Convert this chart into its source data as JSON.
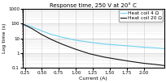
{
  "title": "Response time, 250 V at 20° C",
  "xlabel": "Current (A)",
  "ylabel": "Log time (s)",
  "xlim": [
    0.22,
    2.3
  ],
  "ylim_log": [
    0.1,
    1000
  ],
  "xticks": [
    0.25,
    0.5,
    0.75,
    1.0,
    1.25,
    1.5,
    1.75,
    2.0
  ],
  "xtick_labels": [
    "0.25",
    "0.50",
    "0.75",
    "1.00",
    "1.25",
    "1.50",
    "1.75",
    "2.00"
  ],
  "legend": [
    "Heat coil 4 Ω",
    "Heat coil 20 Ω"
  ],
  "line1_color": "#6dd0f0",
  "line2_color": "#111111",
  "line1_x": [
    0.22,
    0.35,
    0.5,
    0.65,
    0.8,
    1.0,
    1.2,
    1.4,
    1.6,
    1.8,
    2.0,
    2.2,
    2.3
  ],
  "line1_y": [
    95,
    62,
    32,
    18,
    12,
    7.5,
    5.5,
    4.2,
    3.5,
    3.0,
    2.5,
    2.2,
    2.0
  ],
  "line2_x": [
    0.22,
    0.35,
    0.5,
    0.65,
    0.8,
    1.0,
    1.2,
    1.4,
    1.6,
    1.8,
    2.0,
    2.2,
    2.3
  ],
  "line2_y": [
    95,
    48,
    18,
    8,
    4,
    1.8,
    0.9,
    0.55,
    0.38,
    0.27,
    0.2,
    0.16,
    0.14
  ],
  "background_color": "#ffffff",
  "grid_color": "#cccccc",
  "title_fontsize": 5.0,
  "label_fontsize": 4.5,
  "tick_fontsize": 4.0,
  "legend_fontsize": 4.2,
  "linewidth": 0.8
}
